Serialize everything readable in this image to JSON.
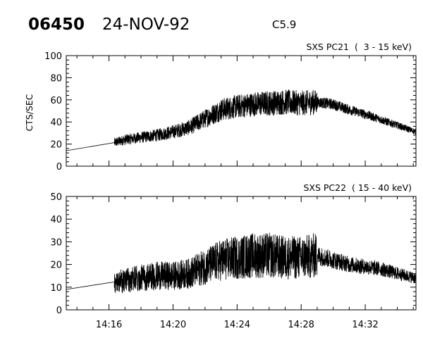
{
  "header": {
    "event_id": "06450",
    "date": "24-NOV-92",
    "flare_class": "C5.9"
  },
  "chart_data": [
    {
      "type": "line",
      "panel": "top",
      "title": "SXS PC21  (  3 - 15 keV)",
      "xlabel": "",
      "ylabel": "CTS/SEC",
      "xlim": [
        "14:13:20",
        "14:35:10"
      ],
      "ylim": [
        0,
        100
      ],
      "y_ticks": [
        0,
        20,
        40,
        60,
        80,
        100
      ],
      "x_ticks": [
        "14:16",
        "14:20",
        "14:24",
        "14:28",
        "14:32"
      ],
      "grid": false,
      "series": [
        {
          "x": [
            "14:13:20",
            "14:16:00",
            "14:17:00",
            "14:18:00",
            "14:19:00",
            "14:20:00",
            "14:21:00",
            "14:22:00",
            "14:23:00",
            "14:24:00",
            "14:25:00",
            "14:26:00",
            "14:27:00",
            "14:28:00",
            "14:29:00",
            "14:30:00",
            "14:31:00",
            "14:32:00",
            "14:33:00",
            "14:34:00",
            "14:35:10"
          ],
          "y": [
            14,
            20,
            24,
            26,
            28,
            31,
            35,
            43,
            51,
            54,
            56,
            57,
            58,
            57,
            58,
            56,
            51,
            47,
            42,
            37,
            31
          ]
        }
      ]
    },
    {
      "type": "line",
      "panel": "bottom",
      "title": "SXS PC22  ( 15 - 40 keV)",
      "xlabel": "",
      "ylabel": "",
      "xlim": [
        "14:13:20",
        "14:35:10"
      ],
      "ylim": [
        0,
        50
      ],
      "y_ticks": [
        0,
        10,
        20,
        30,
        40,
        50
      ],
      "x_ticks": [
        "14:16",
        "14:20",
        "14:24",
        "14:28",
        "14:32"
      ],
      "grid": false,
      "series": [
        {
          "x": [
            "14:13:20",
            "14:16:00",
            "14:17:00",
            "14:18:00",
            "14:19:00",
            "14:20:00",
            "14:21:00",
            "14:22:00",
            "14:23:00",
            "14:24:00",
            "14:25:00",
            "14:26:00",
            "14:27:00",
            "14:28:00",
            "14:29:00",
            "14:30:00",
            "14:31:00",
            "14:32:00",
            "14:33:00",
            "14:34:00",
            "14:35:10"
          ],
          "y": [
            9,
            12,
            13,
            14,
            15,
            15,
            16,
            19,
            22,
            23,
            24,
            24,
            23,
            23,
            24,
            22,
            20,
            19,
            18,
            16,
            14
          ]
        }
      ]
    }
  ]
}
